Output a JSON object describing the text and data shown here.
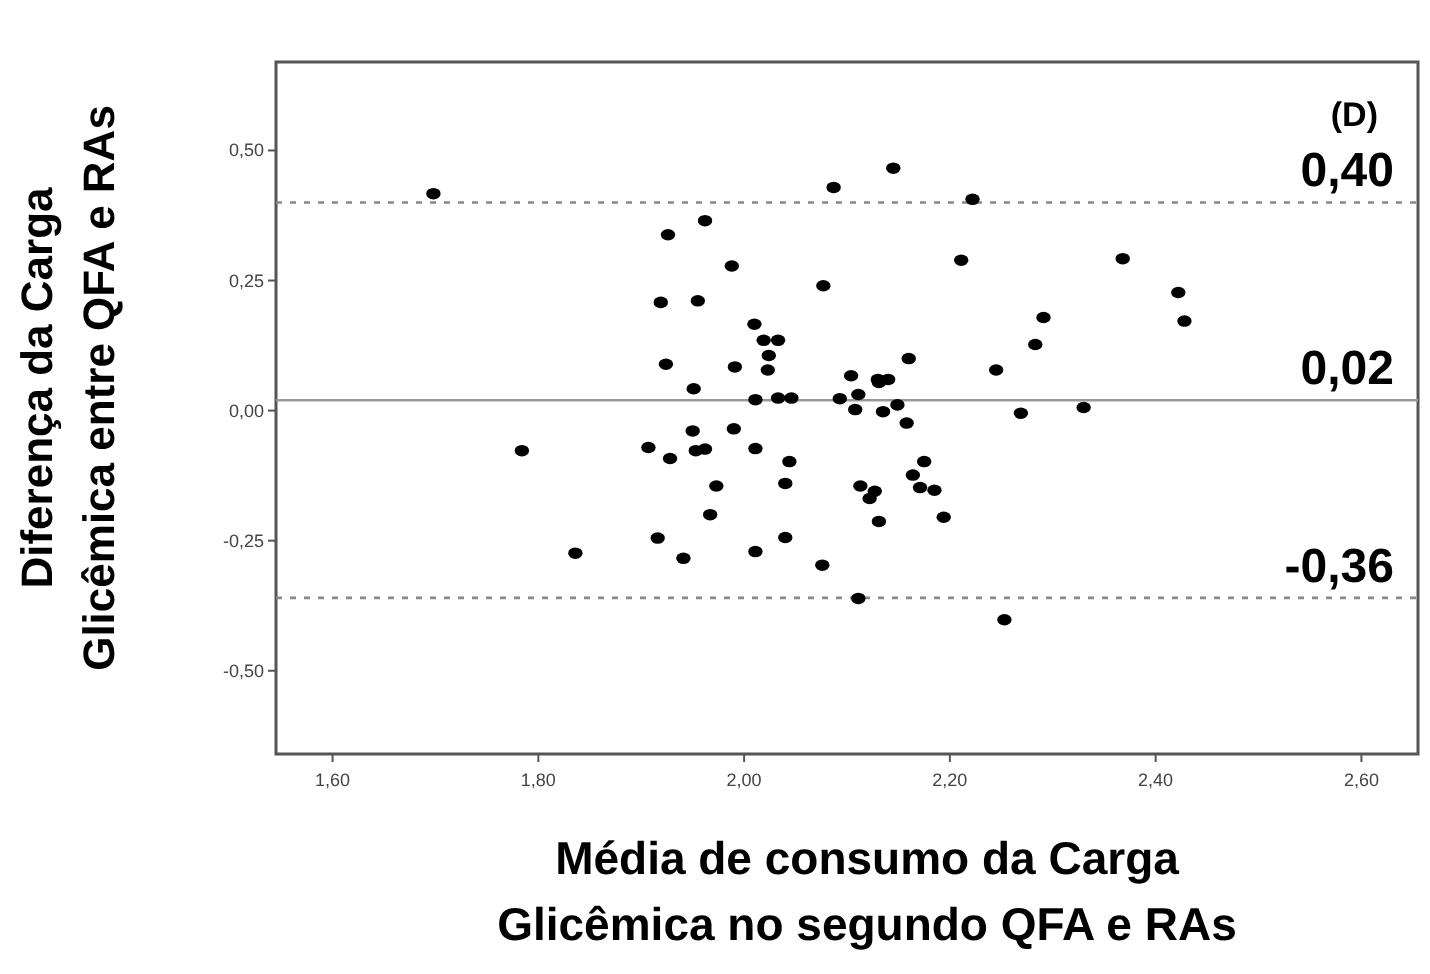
{
  "chart_data": {
    "type": "scatter",
    "xlabel": "Média de consumo da Carga\nGlicêmica no segundo QFA e RAs",
    "ylabel": "Diferença da Carga\nGlicêmica entre QFA e RAs",
    "annotations": [
      "(D)"
    ],
    "marker": "circle",
    "grid": false,
    "xlim": [
      1.545,
      2.655
    ],
    "ylim": [
      -0.66,
      0.67
    ],
    "xticks": [
      {
        "value": 1.6,
        "label": "1,60"
      },
      {
        "value": 1.8,
        "label": "1,80"
      },
      {
        "value": 2.0,
        "label": "2,00"
      },
      {
        "value": 2.2,
        "label": "2,20"
      },
      {
        "value": 2.4,
        "label": "2,40"
      },
      {
        "value": 2.6,
        "label": "2,60"
      }
    ],
    "yticks": [
      {
        "value": -0.5,
        "label": "-0,50"
      },
      {
        "value": -0.25,
        "label": "-0,25"
      },
      {
        "value": 0,
        "label": "0,00"
      },
      {
        "value": 0.25,
        "label": "0,25"
      },
      {
        "value": 0.5,
        "label": "0,50"
      }
    ],
    "ref_lines": [
      {
        "axis": "y",
        "value": 0.4,
        "label": "0,40",
        "line_style": "dotted",
        "color": "#888888"
      },
      {
        "axis": "y",
        "value": 0.02,
        "label": "0,02",
        "line_style": "solid",
        "color": "#999999"
      },
      {
        "axis": "y",
        "value": -0.36,
        "label": "-0,36",
        "line_style": "dotted",
        "color": "#888888"
      }
    ],
    "series": [
      {
        "color": "#000000",
        "x": [
          1.698,
          2.087,
          2.145,
          2.222,
          1.926,
          1.962,
          1.988,
          2.077,
          2.211,
          2.368,
          2.422,
          2.428,
          1.919,
          1.955,
          2.01,
          2.019,
          2.033,
          2.024,
          2.291,
          2.283,
          1.924,
          1.991,
          2.023,
          2.104,
          2.13,
          2.14,
          2.131,
          2.16,
          2.245,
          1.951,
          2.011,
          2.033,
          2.046,
          2.093,
          2.111,
          2.108,
          2.135,
          2.149,
          2.269,
          2.33,
          2.158,
          1.95,
          1.99,
          1.907,
          1.928,
          1.953,
          1.962,
          2.011,
          2.044,
          1.784,
          1.973,
          2.04,
          2.113,
          2.127,
          2.122,
          2.164,
          2.175,
          2.171,
          2.185,
          2.131,
          2.194,
          1.967,
          1.916,
          2.04,
          1.836,
          1.941,
          2.011,
          2.076,
          2.111,
          2.253
        ],
        "values": [
          0.417,
          0.429,
          0.466,
          0.406,
          0.338,
          0.365,
          0.278,
          0.24,
          0.289,
          0.292,
          0.227,
          0.172,
          0.208,
          0.211,
          0.166,
          0.135,
          0.135,
          0.106,
          0.179,
          0.127,
          0.089,
          0.084,
          0.078,
          0.067,
          0.06,
          0.06,
          0.054,
          0.1,
          0.078,
          0.042,
          0.021,
          0.024,
          0.024,
          0.023,
          0.031,
          0.002,
          -0.002,
          0.011,
          -0.005,
          0.006,
          -0.024,
          -0.039,
          -0.035,
          -0.071,
          -0.092,
          -0.077,
          -0.074,
          -0.073,
          -0.098,
          -0.077,
          -0.145,
          -0.14,
          -0.145,
          -0.155,
          -0.169,
          -0.124,
          -0.098,
          -0.148,
          -0.153,
          -0.213,
          -0.205,
          -0.2,
          -0.245,
          -0.244,
          -0.274,
          -0.284,
          -0.271,
          -0.297,
          -0.361,
          -0.402
        ]
      }
    ]
  }
}
